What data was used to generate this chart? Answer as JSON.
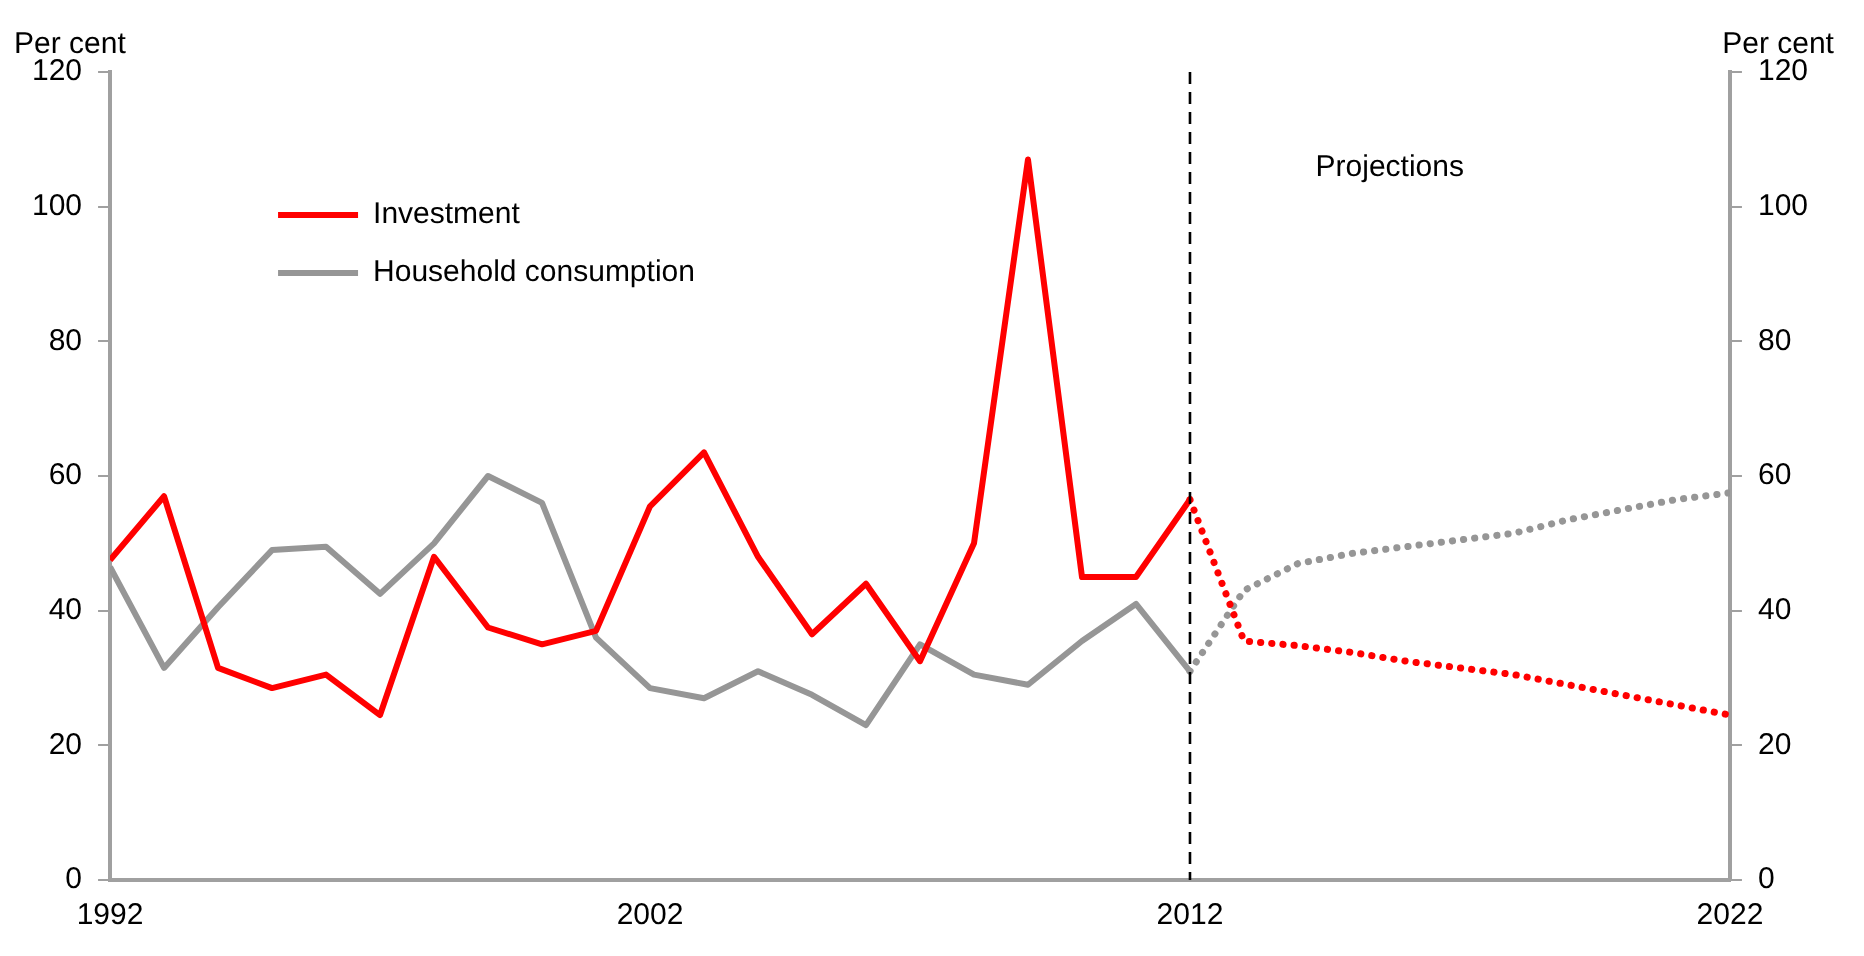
{
  "chart_data": {
    "type": "line",
    "ylabel": "Per cent",
    "y2label": "Per cent",
    "xlim": [
      1992,
      2022
    ],
    "xticks": [
      1992,
      2002,
      2012,
      2022
    ],
    "ylim": [
      0,
      120
    ],
    "yticks": [
      0,
      20,
      40,
      60,
      80,
      100,
      120
    ],
    "y2lim": [
      0,
      120
    ],
    "y2ticks": [
      0,
      20,
      40,
      60,
      80,
      100,
      120
    ],
    "grid": false,
    "legend": "top left",
    "marker": "none",
    "series": [
      {
        "name": "Investment",
        "color": "#ff0000",
        "line_style": "solid",
        "x": [
          1992,
          1993,
          1994,
          1995,
          1996,
          1997,
          1998,
          1999,
          2000,
          2001,
          2002,
          2003,
          2004,
          2005,
          2006,
          2007,
          2008,
          2009,
          2010,
          2011,
          2012
        ],
        "values": [
          47.5,
          57,
          31.5,
          28.5,
          30.5,
          24.5,
          48,
          37.5,
          35,
          37,
          55.5,
          63.5,
          48,
          36.5,
          44,
          32.5,
          50,
          107,
          45,
          45,
          56.5
        ]
      },
      {
        "name": "Household consumption",
        "color": "#969696",
        "line_style": "solid",
        "x": [
          1992,
          1993,
          1994,
          1995,
          1996,
          1997,
          1998,
          1999,
          2000,
          2001,
          2002,
          2003,
          2004,
          2005,
          2006,
          2007,
          2008,
          2009,
          2010,
          2011,
          2012
        ],
        "values": [
          46.5,
          31.5,
          40.5,
          49,
          49.5,
          42.5,
          50,
          60,
          56,
          36,
          28.5,
          27,
          31,
          27.5,
          23,
          35,
          30.5,
          29,
          35.5,
          41,
          31
        ]
      },
      {
        "color": "#ff0000",
        "line_style": "dotted",
        "x": [
          2012,
          2013,
          2014,
          2015,
          2016,
          2017,
          2018,
          2019,
          2020,
          2021,
          2022
        ],
        "values": [
          56.5,
          35.5,
          34.8,
          33.8,
          32.5,
          31.5,
          30.5,
          29,
          27.5,
          26,
          24.5
        ]
      },
      {
        "color": "#969696",
        "line_style": "dotted",
        "x": [
          2012,
          2013,
          2014,
          2015,
          2016,
          2017,
          2018,
          2019,
          2020,
          2021,
          2022
        ],
        "values": [
          31,
          43,
          47,
          48.5,
          49.5,
          50.5,
          51.5,
          53.5,
          55,
          56.5,
          57.5
        ]
      }
    ],
    "annotations": [
      "Projections"
    ],
    "ref_lines": [
      {
        "axis": "x",
        "value": 2012,
        "color": "#000000",
        "line_style": "dashed"
      }
    ]
  }
}
